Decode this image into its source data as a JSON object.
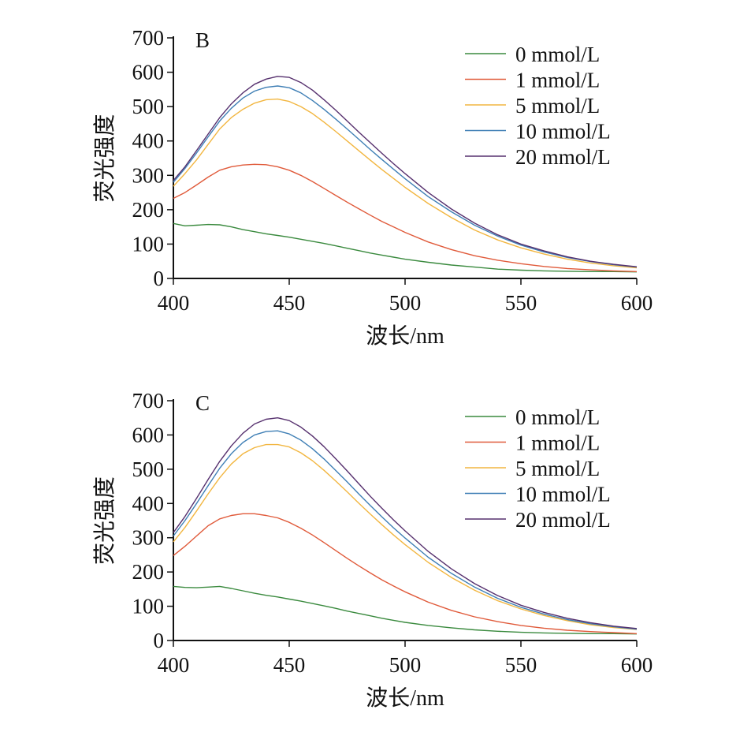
{
  "chart_data": [
    {
      "type": "line",
      "panel_label": "B",
      "xlabel": "波长/nm",
      "ylabel": "荧光强度",
      "xlim": [
        400,
        600
      ],
      "ylim": [
        0,
        700
      ],
      "xticks": [
        400,
        450,
        500,
        550,
        600
      ],
      "yticks": [
        0,
        100,
        200,
        300,
        400,
        500,
        600,
        700
      ],
      "legend_position": "top-right",
      "x": [
        400,
        405,
        410,
        415,
        420,
        425,
        430,
        435,
        440,
        445,
        450,
        455,
        460,
        465,
        470,
        475,
        480,
        485,
        490,
        495,
        500,
        510,
        520,
        530,
        540,
        550,
        560,
        570,
        580,
        590,
        600
      ],
      "series": [
        {
          "name": "0 mmol/L",
          "color": "#3a8a3e",
          "values": [
            160,
            153,
            155,
            157,
            156,
            150,
            142,
            136,
            130,
            125,
            120,
            114,
            108,
            102,
            95,
            88,
            81,
            74,
            68,
            62,
            56,
            47,
            39,
            33,
            27,
            24,
            22,
            21,
            20,
            20,
            19
          ]
        },
        {
          "name": "1 mmol/L",
          "color": "#e05a3a",
          "values": [
            233,
            250,
            272,
            295,
            315,
            325,
            330,
            332,
            331,
            325,
            315,
            300,
            282,
            262,
            242,
            222,
            203,
            184,
            166,
            150,
            134,
            106,
            84,
            66,
            53,
            43,
            35,
            29,
            25,
            22,
            20
          ]
        },
        {
          "name": "5 mmol/L",
          "color": "#f2b640",
          "values": [
            268,
            305,
            345,
            390,
            435,
            468,
            492,
            510,
            520,
            522,
            515,
            500,
            480,
            455,
            428,
            400,
            372,
            344,
            317,
            291,
            265,
            218,
            177,
            141,
            112,
            89,
            71,
            56,
            45,
            37,
            31
          ]
        },
        {
          "name": "10 mmol/L",
          "color": "#3f7fb5",
          "values": [
            280,
            320,
            365,
            412,
            458,
            495,
            525,
            545,
            556,
            560,
            555,
            540,
            518,
            492,
            464,
            435,
            405,
            375,
            346,
            318,
            290,
            238,
            194,
            155,
            123,
            97,
            77,
            61,
            49,
            40,
            33
          ]
        },
        {
          "name": "20 mmol/L",
          "color": "#56306e",
          "values": [
            285,
            325,
            372,
            420,
            468,
            508,
            540,
            565,
            580,
            588,
            585,
            570,
            548,
            520,
            490,
            458,
            426,
            395,
            364,
            334,
            305,
            250,
            202,
            161,
            127,
            100,
            80,
            63,
            50,
            41,
            34
          ]
        }
      ]
    },
    {
      "type": "line",
      "panel_label": "C",
      "xlabel": "波长/nm",
      "ylabel": "荧光强度",
      "xlim": [
        400,
        600
      ],
      "ylim": [
        0,
        700
      ],
      "xticks": [
        400,
        450,
        500,
        550,
        600
      ],
      "yticks": [
        0,
        100,
        200,
        300,
        400,
        500,
        600,
        700
      ],
      "legend_position": "top-right",
      "x": [
        400,
        405,
        410,
        415,
        420,
        425,
        430,
        435,
        440,
        445,
        450,
        455,
        460,
        465,
        470,
        475,
        480,
        485,
        490,
        495,
        500,
        510,
        520,
        530,
        540,
        550,
        560,
        570,
        580,
        590,
        600
      ],
      "series": [
        {
          "name": "0 mmol/L",
          "color": "#3a8a3e",
          "values": [
            158,
            155,
            154,
            156,
            158,
            152,
            145,
            138,
            132,
            127,
            121,
            115,
            108,
            101,
            94,
            86,
            79,
            72,
            65,
            59,
            53,
            44,
            37,
            31,
            27,
            24,
            22,
            21,
            20,
            20,
            19
          ]
        },
        {
          "name": "1 mmol/L",
          "color": "#e05a3a",
          "values": [
            248,
            275,
            305,
            335,
            355,
            365,
            370,
            370,
            365,
            358,
            345,
            328,
            308,
            286,
            263,
            240,
            218,
            197,
            177,
            159,
            142,
            112,
            88,
            69,
            55,
            44,
            36,
            30,
            26,
            23,
            20
          ]
        },
        {
          "name": "5 mmol/L",
          "color": "#f2b640",
          "values": [
            288,
            330,
            378,
            428,
            475,
            515,
            545,
            563,
            572,
            572,
            565,
            548,
            525,
            497,
            466,
            434,
            401,
            369,
            338,
            308,
            280,
            228,
            184,
            147,
            116,
            92,
            73,
            58,
            46,
            38,
            32
          ]
        },
        {
          "name": "10 mmol/L",
          "color": "#3f7fb5",
          "values": [
            305,
            350,
            400,
            452,
            503,
            545,
            578,
            600,
            610,
            612,
            603,
            585,
            560,
            530,
            497,
            463,
            428,
            394,
            361,
            329,
            299,
            243,
            196,
            156,
            123,
            97,
            77,
            61,
            49,
            40,
            33
          ]
        },
        {
          "name": "20 mmol/L",
          "color": "#56306e",
          "values": [
            315,
            362,
            415,
            470,
            523,
            568,
            605,
            632,
            646,
            650,
            642,
            623,
            597,
            566,
            531,
            495,
            458,
            421,
            386,
            352,
            320,
            260,
            209,
            166,
            131,
            103,
            82,
            65,
            52,
            42,
            35
          ]
        }
      ]
    }
  ]
}
